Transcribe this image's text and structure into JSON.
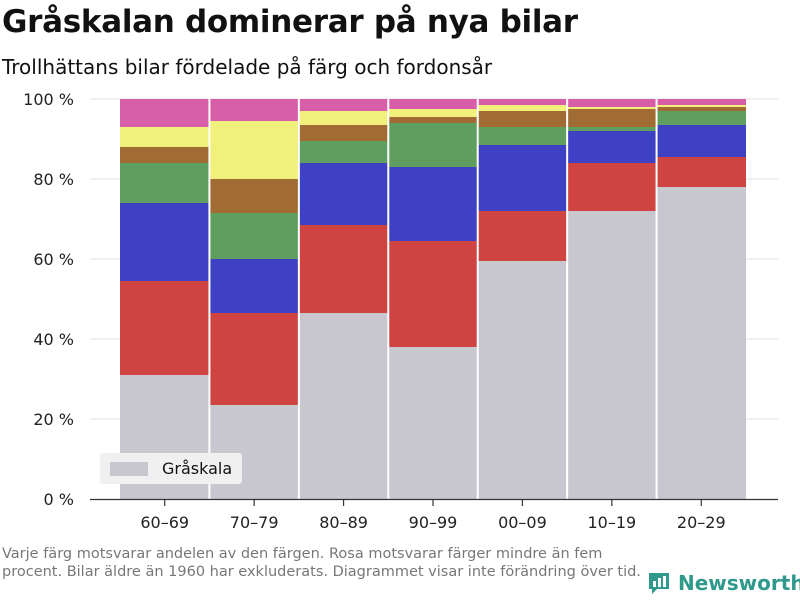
{
  "title": "Gråskalan dominerar på nya bilar",
  "subtitle": "Trollhättans bilar fördelade på färg och fordonsår",
  "footnote": "Varje färg motsvarar andelen av den färgen. Rosa motsvarar färger mindre än fem procent. Bilar äldre än 1960 har exkluderats. Diagrammet visar inte förändring över tid.",
  "brand": "Newsworthy",
  "colors": {
    "grey": "#c8c7cf",
    "red": "#cf4341",
    "blue": "#3f41c4",
    "green": "#5e9e5e",
    "brown": "#a06c33",
    "yellow": "#f0f07a",
    "pink": "#d85ea8",
    "brand": "#2f9a8c"
  },
  "chart_data": {
    "type": "bar",
    "stacked": true,
    "categories": [
      "60–69",
      "70–79",
      "80–89",
      "90–99",
      "00–09",
      "10–19",
      "20–29"
    ],
    "ylim": [
      0,
      100
    ],
    "yticks": [
      0,
      20,
      40,
      60,
      80,
      100
    ],
    "ytick_labels": [
      "0 %",
      "20 %",
      "40 %",
      "60 %",
      "80 %",
      "100 %"
    ],
    "grid": true,
    "legend": {
      "position": "bottom-left",
      "entries": [
        "Gråskala"
      ]
    },
    "series": [
      {
        "name": "Gråskala",
        "color": "grey",
        "values": [
          31,
          23.5,
          46.5,
          38,
          59.5,
          72,
          78
        ]
      },
      {
        "color": "red",
        "values": [
          23.5,
          23,
          22,
          26.5,
          12.5,
          12,
          7.5
        ]
      },
      {
        "color": "blue",
        "values": [
          19.5,
          13.5,
          15.5,
          18.5,
          16.5,
          8,
          8
        ]
      },
      {
        "color": "green",
        "values": [
          10,
          11.5,
          5.5,
          11,
          4.5,
          1,
          3.5
        ]
      },
      {
        "color": "brown",
        "values": [
          4,
          8.5,
          4,
          1.5,
          4,
          4.5,
          1
        ]
      },
      {
        "color": "yellow",
        "values": [
          5,
          14.5,
          3.5,
          2,
          1.5,
          0.5,
          0.5
        ]
      },
      {
        "color": "pink",
        "values": [
          7,
          5.5,
          3,
          2.5,
          1.5,
          2,
          1.5
        ]
      }
    ]
  }
}
